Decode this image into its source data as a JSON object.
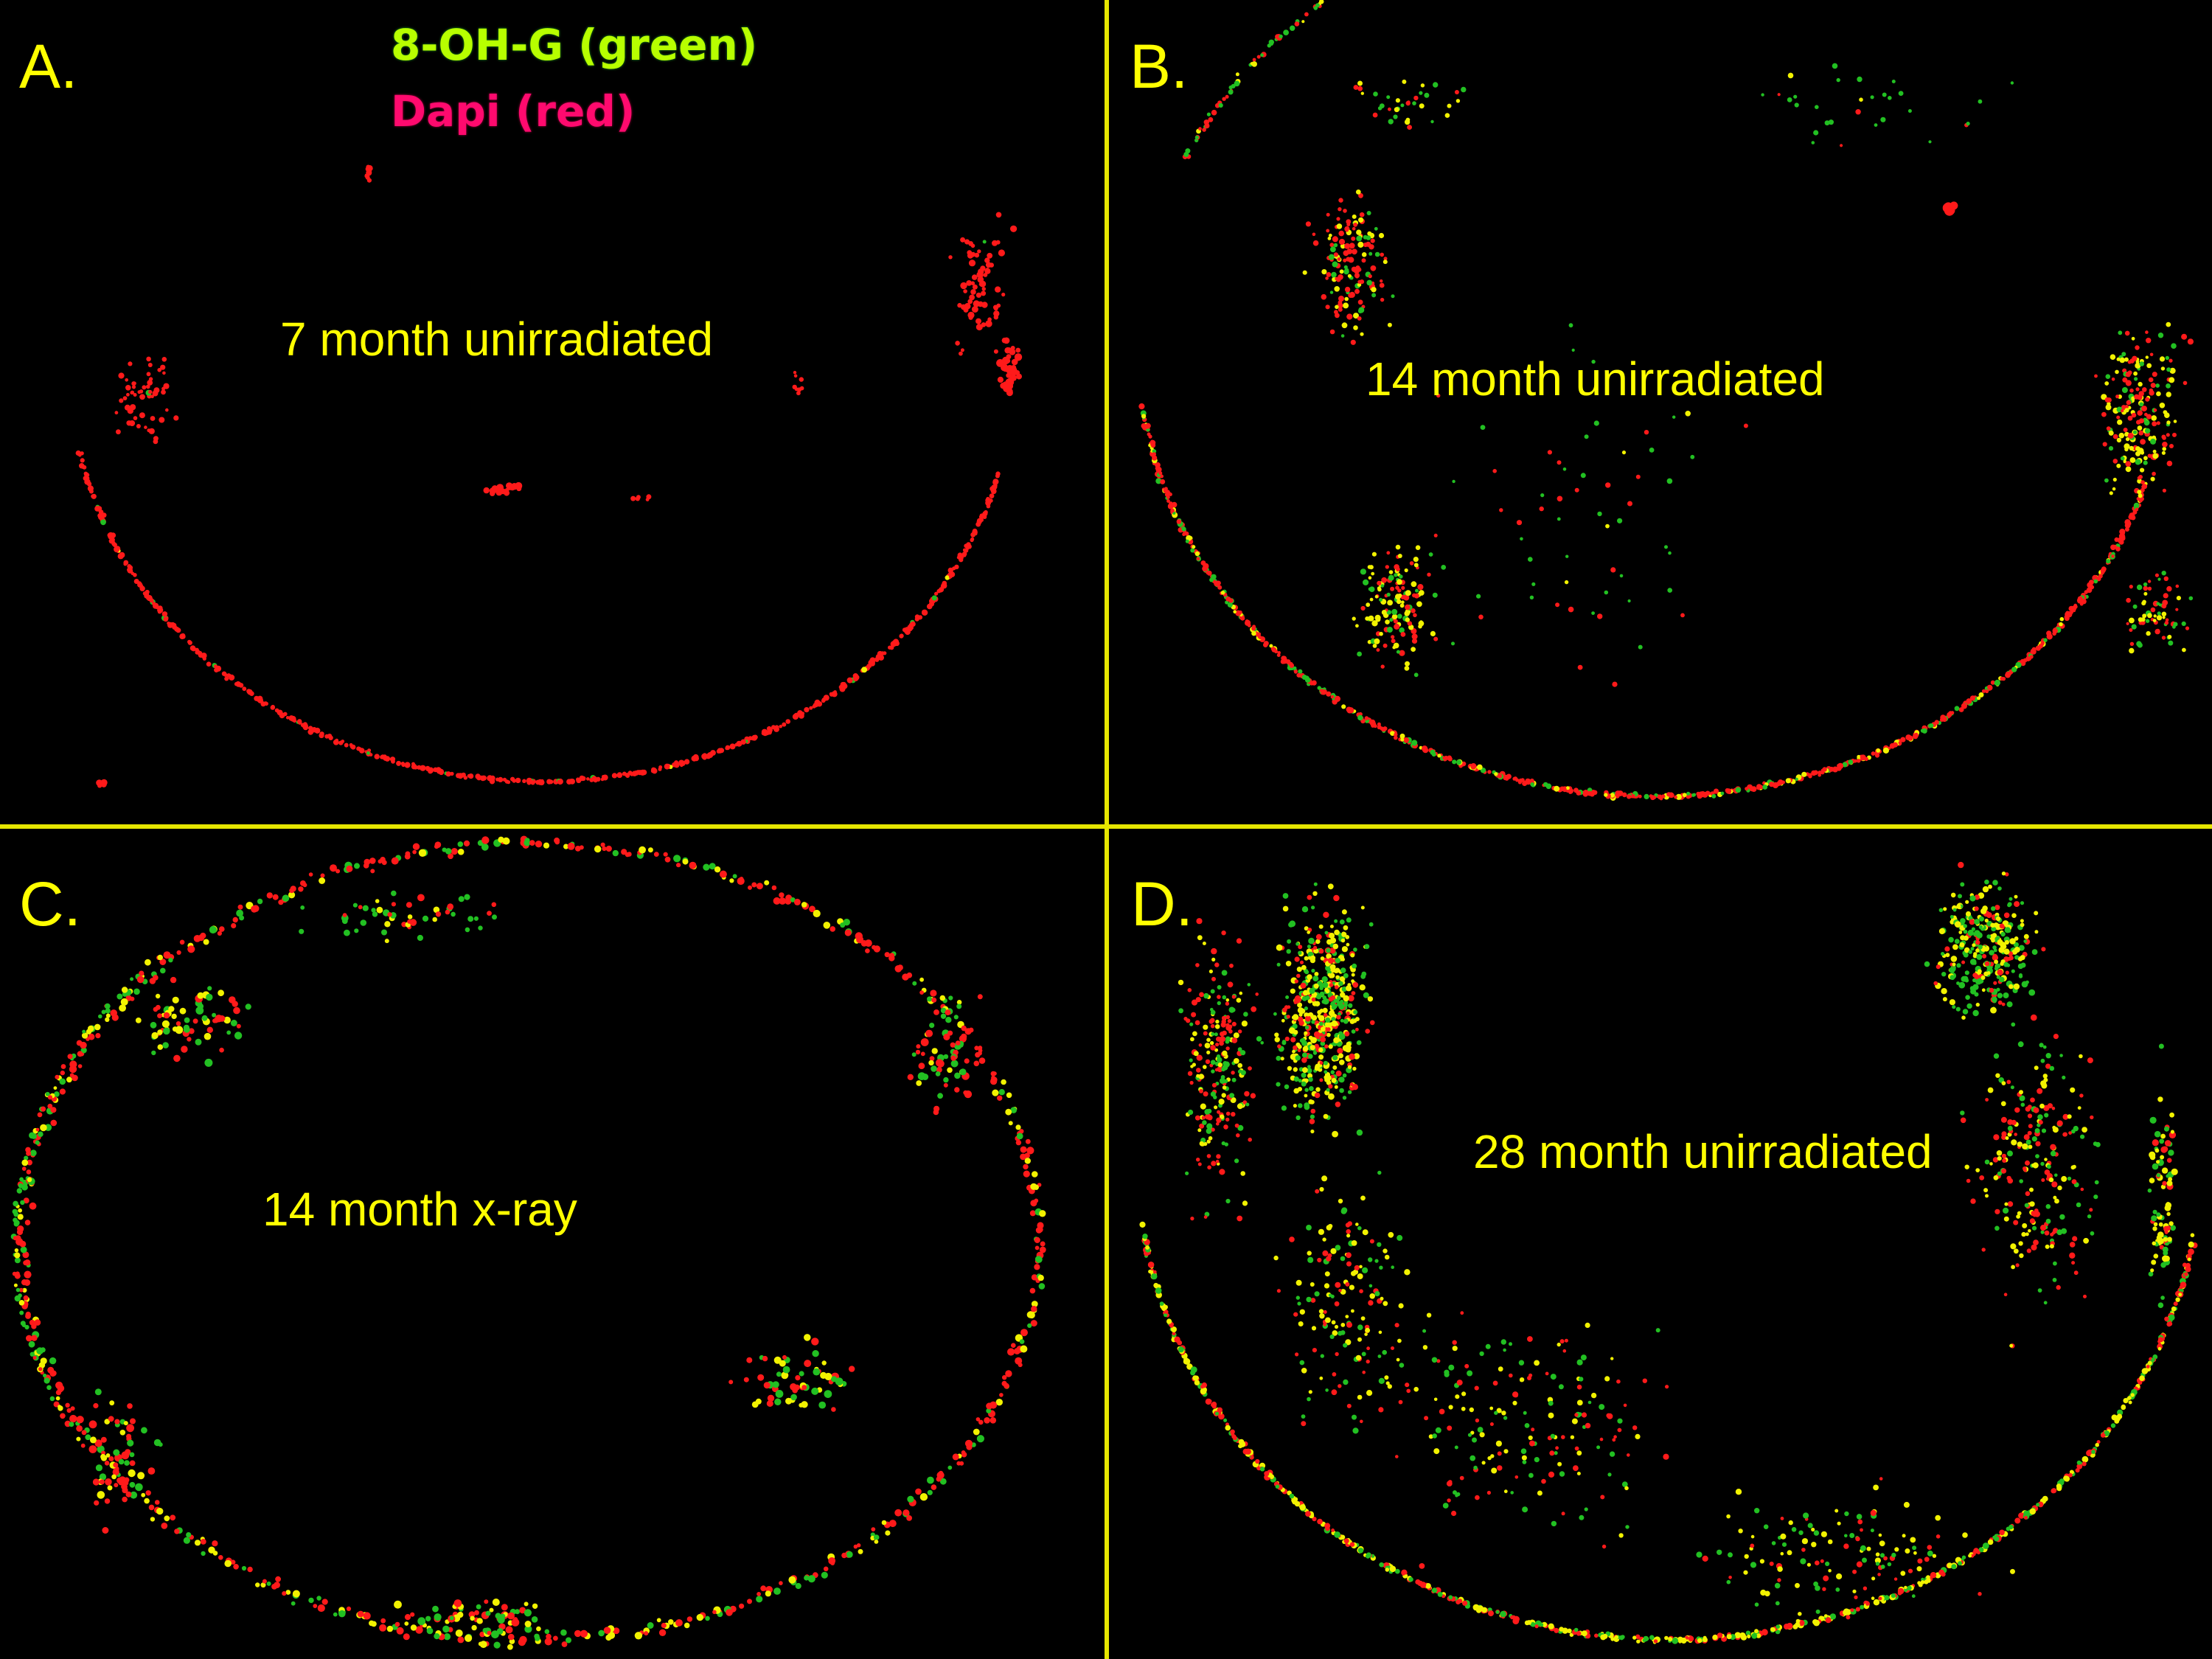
{
  "legend": {
    "green_label": "8-OH-G (green)",
    "red_label": "Dapi (red)"
  },
  "panels": [
    {
      "letter": "A.",
      "caption": "7 month unirradiated"
    },
    {
      "letter": "B.",
      "caption": "14 month unirradiated"
    },
    {
      "letter": "C.",
      "caption": "14 month x-ray"
    },
    {
      "letter": "D.",
      "caption": "28 month unirradiated"
    }
  ],
  "colors": {
    "background": "#000000",
    "divider": "#e6e600",
    "label": "#ffff00",
    "dapi": "#ff1a1a",
    "oh_g": "#22c022",
    "overlap": "#f2f200"
  }
}
